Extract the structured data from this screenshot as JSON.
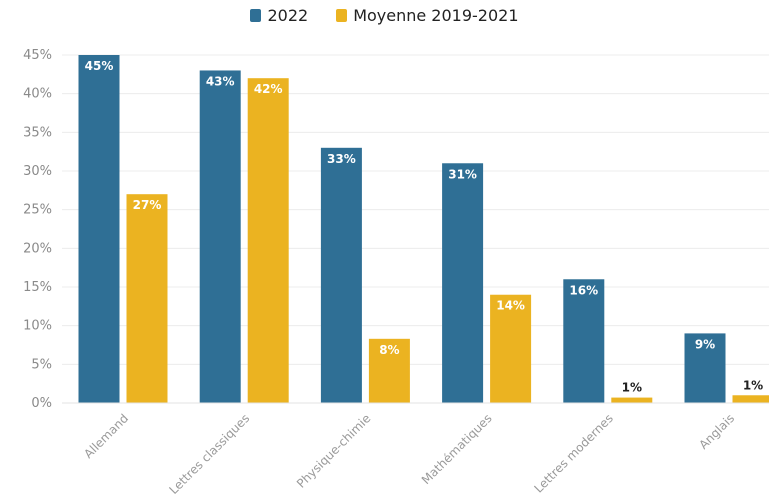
{
  "chart_data": {
    "type": "bar",
    "title": "",
    "xlabel": "",
    "ylabel": "",
    "categories": [
      "Allemand",
      "Lettres classiques",
      "Physique-chimie",
      "Mathématiques",
      "Lettres modernes",
      "Anglais"
    ],
    "series": [
      {
        "name": "2022",
        "values": [
          45,
          43,
          33,
          31,
          16,
          9
        ],
        "labels": [
          "45%",
          "43%",
          "33%",
          "31%",
          "16%",
          "9%"
        ],
        "color": "#2f6f95"
      },
      {
        "name": "Moyenne 2019-2021",
        "values": [
          27,
          42,
          8.3,
          14,
          0.7,
          1
        ],
        "labels": [
          "27%",
          "42%",
          "8%",
          "14%",
          "1%",
          "1%"
        ],
        "color": "#ebb321"
      }
    ],
    "ylim": [
      0,
      45
    ],
    "yticks": [
      0,
      5,
      10,
      15,
      20,
      25,
      30,
      35,
      40,
      45
    ],
    "ytick_labels": [
      "0%",
      "5%",
      "10%",
      "15%",
      "20%",
      "25%",
      "30%",
      "35%",
      "40%",
      "45%"
    ],
    "grid": true,
    "legend_position": "top-center"
  }
}
